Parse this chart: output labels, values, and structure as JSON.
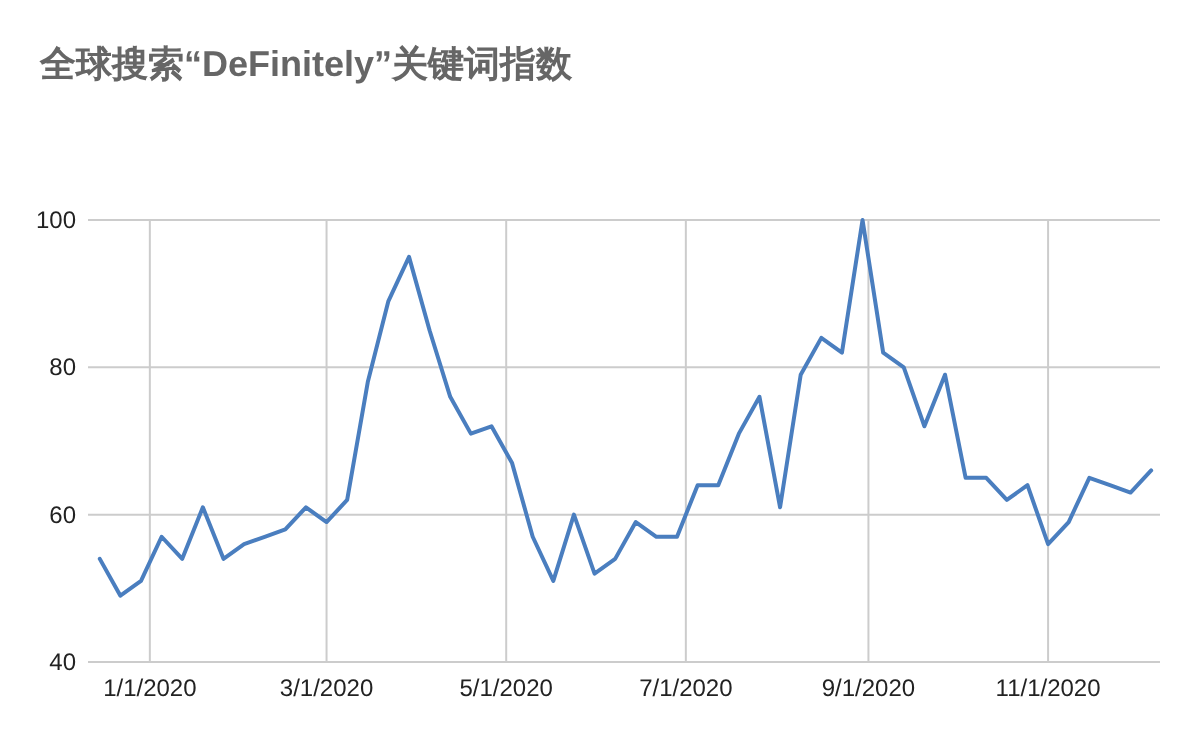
{
  "chart_data": {
    "type": "line",
    "title": "全球搜索“DeFinitely”关键词指数",
    "x": [
      "2019-12-15",
      "2019-12-22",
      "2019-12-29",
      "2020-01-05",
      "2020-01-12",
      "2020-01-19",
      "2020-01-26",
      "2020-02-02",
      "2020-02-09",
      "2020-02-16",
      "2020-02-23",
      "2020-03-01",
      "2020-03-08",
      "2020-03-15",
      "2020-03-22",
      "2020-03-29",
      "2020-04-05",
      "2020-04-12",
      "2020-04-19",
      "2020-04-26",
      "2020-05-03",
      "2020-05-10",
      "2020-05-17",
      "2020-05-24",
      "2020-05-31",
      "2020-06-07",
      "2020-06-14",
      "2020-06-21",
      "2020-06-28",
      "2020-07-05",
      "2020-07-12",
      "2020-07-19",
      "2020-07-26",
      "2020-08-02",
      "2020-08-09",
      "2020-08-16",
      "2020-08-23",
      "2020-08-30",
      "2020-09-06",
      "2020-09-13",
      "2020-09-20",
      "2020-09-27",
      "2020-10-04",
      "2020-10-11",
      "2020-10-18",
      "2020-10-25",
      "2020-11-01",
      "2020-11-08",
      "2020-11-15",
      "2020-11-22",
      "2020-11-29",
      "2020-12-06"
    ],
    "series": [
      {
        "color": "#4a7ebf",
        "values": [
          54,
          49,
          51,
          57,
          54,
          61,
          54,
          56,
          57,
          58,
          61,
          59,
          62,
          78,
          89,
          95,
          85,
          76,
          71,
          72,
          67,
          57,
          51,
          60,
          52,
          54,
          59,
          57,
          57,
          64,
          64,
          71,
          76,
          61,
          79,
          84,
          82,
          100,
          82,
          80,
          72,
          79,
          65,
          65,
          62,
          64,
          56,
          59,
          65,
          64,
          63,
          66
        ]
      }
    ],
    "xlim": [
      "2019-12-11",
      "2020-12-09"
    ],
    "xticks": [
      {
        "value": "2020-01-01",
        "label": "1/1/2020"
      },
      {
        "value": "2020-03-01",
        "label": "3/1/2020"
      },
      {
        "value": "2020-05-01",
        "label": "5/1/2020"
      },
      {
        "value": "2020-07-01",
        "label": "7/1/2020"
      },
      {
        "value": "2020-09-01",
        "label": "9/1/2020"
      },
      {
        "value": "2020-11-01",
        "label": "11/1/2020"
      }
    ],
    "ylim": [
      40,
      100
    ],
    "yticks": [
      40,
      60,
      80,
      100
    ],
    "grid": true
  }
}
